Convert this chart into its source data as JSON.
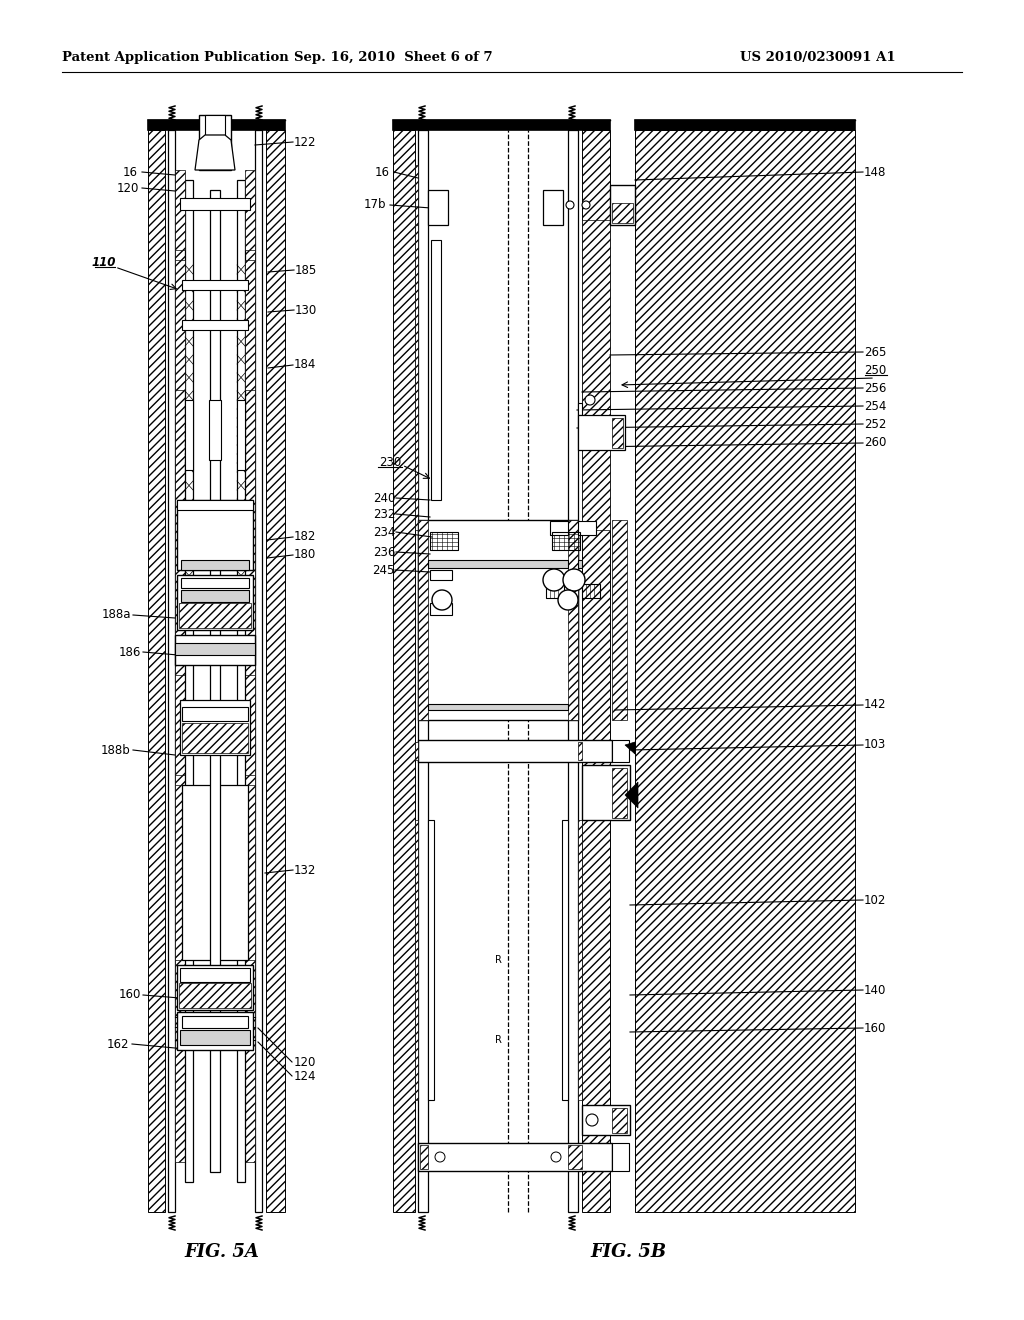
{
  "title_left": "Patent Application Publication",
  "title_center": "Sep. 16, 2010  Sheet 6 of 7",
  "title_right": "US 2010/0230091 A1",
  "fig_label_a": "FIG. 5A",
  "fig_label_b": "FIG. 5B",
  "bg": "#ffffff"
}
